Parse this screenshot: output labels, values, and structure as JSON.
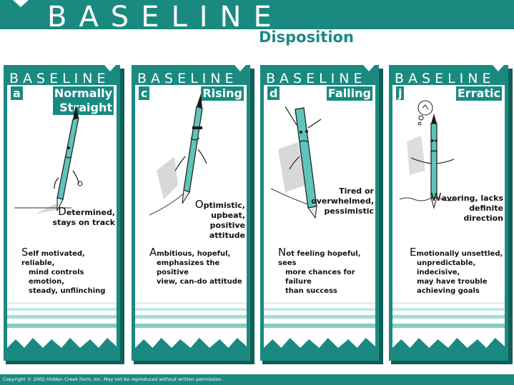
{
  "header": {
    "title": "BASELINE",
    "subtitle": "Disposition"
  },
  "panels": [
    {
      "header": "BASELINE",
      "letter": "a",
      "title_line1": "Normally",
      "title_line2": "Straight",
      "phrase_cap": "D",
      "phrase_rest_line1": "etermined,",
      "phrase_line2": "stays on track",
      "phrase_line3": "",
      "desc_cap": "S",
      "desc_line1": "elf motivated, reliable,",
      "desc_line2": "mind controls emotion,",
      "desc_line3": "steady, unflinching",
      "desc_line4": ""
    },
    {
      "header": "BASELINE",
      "letter": "c",
      "title_line1": "Rising",
      "title_line2": "",
      "phrase_cap": "O",
      "phrase_rest_line1": "ptimistic,",
      "phrase_line2": "upbeat,",
      "phrase_line3": "positive",
      "phrase_line4": "attitude",
      "desc_cap": "A",
      "desc_line1": "mbitious, hopeful,",
      "desc_line2": "emphasizes the positive",
      "desc_line3": "view, can-do attitude",
      "desc_line4": ""
    },
    {
      "header": "BASELINE",
      "letter": "d",
      "title_line1": "Falling",
      "title_line2": "",
      "phrase_line1": "Tired or",
      "phrase_line2": "overwhelmed,",
      "phrase_line3": "pessimistic",
      "desc_cap": "N",
      "desc_line1": "ot feeling hopeful, sees",
      "desc_line2": "more chances for failure",
      "desc_line3": "than success",
      "desc_line4": ""
    },
    {
      "header": "BASELINE",
      "letter": "j",
      "title_line1": "Erratic",
      "title_line2": "",
      "phrase_cap": "W",
      "phrase_rest_line1": "avering, lacks",
      "phrase_line2": "definite",
      "phrase_line3": "direction",
      "desc_cap": "E",
      "desc_line1": "motionally unsettled,",
      "desc_line2": "unpredictable, indecisive,",
      "desc_line3": "may have trouble",
      "desc_line4": "achieving goals"
    }
  ],
  "footer": {
    "copyright": "Copyright © 2002 Hidden Creek Farm, Inc. May not be reproduced without written permission."
  },
  "colors": {
    "teal": "#1a8a80",
    "teal_dark": "#0e5f58",
    "pen": "#5fc4bb"
  }
}
